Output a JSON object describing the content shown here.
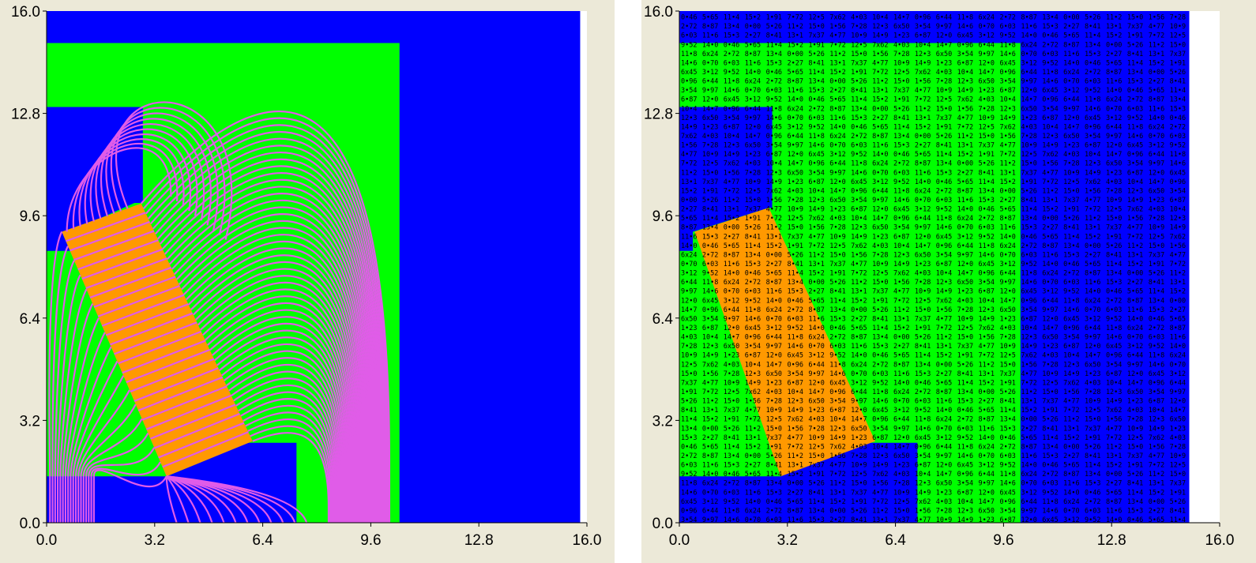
{
  "chart_data": [
    {
      "type": "contour",
      "xlim": [
        0,
        16
      ],
      "ylim": [
        0,
        16
      ],
      "x_ticks": [
        "0.0",
        "3.2",
        "6.4",
        "9.6",
        "12.8",
        "16.0"
      ],
      "y_ticks": [
        "0.0",
        "3.2",
        "6.4",
        "9.6",
        "12.8",
        "16.0"
      ],
      "grid": false,
      "regions": {
        "iron_outer": {
          "color": "#0000ff",
          "polygon": [
            [
              0,
              0
            ],
            [
              15.8,
              0
            ],
            [
              15.8,
              16
            ],
            [
              0,
              16
            ]
          ]
        },
        "air": {
          "color": "#00ff00",
          "polygon": [
            [
              0,
              0
            ],
            [
              10.45,
              0
            ],
            [
              10.45,
              15
            ],
            [
              0,
              15
            ]
          ]
        },
        "iron_pole": {
          "color": "#0000ff",
          "polygon": [
            [
              0,
              8.5
            ],
            [
              2.9,
              8.5
            ],
            [
              2.9,
              13
            ]
          ],
          "note_omitted": true
        },
        "iron_lower": {
          "color": "#0000ff",
          "polygon": [
            [
              0,
              0
            ],
            [
              7.4,
              0
            ],
            [
              7.4,
              2.5
            ],
            [
              5.9,
              2.5
            ],
            [
              3.4,
              1.4
            ],
            [
              0,
              1.4
            ]
          ]
        },
        "magnet": {
          "color": "#ff9900",
          "polygon": [
            [
              0.5,
              9.0
            ],
            [
              2.8,
              9.9
            ],
            [
              6.1,
              2.5
            ],
            [
              3.6,
              1.4
            ]
          ]
        }
      },
      "contour_color": "#e05ce8",
      "contour_count": 48
    },
    {
      "type": "heatmap",
      "xlim": [
        0,
        16
      ],
      "ylim": [
        0,
        16
      ],
      "x_ticks": [
        "0.0",
        "3.2",
        "6.4",
        "9.6",
        "12.8",
        "16.0"
      ],
      "y_ticks": [
        "0.0",
        "3.2",
        "6.4",
        "9.6",
        "12.8",
        "16.0"
      ],
      "grid": false,
      "cell_labels_sample": [
        "0•46",
        "0•70",
        "0•96",
        "1•23",
        "1•56",
        "1•91",
        "2•27",
        "2•72",
        "3•12",
        "3•54",
        "4•03",
        "4•77",
        "5•26",
        "5•65",
        "6•03",
        "6•44",
        "6•87",
        "7•28",
        "7•72",
        "8•41",
        "8•87",
        "9•52",
        "9•97",
        "10•4",
        "10•9",
        "11•2",
        "11•4",
        "11•6",
        "11•8",
        "12•0",
        "12•3",
        "12•5",
        "13•1",
        "13•4",
        "14•0",
        "14•6",
        "14•7",
        "14•9",
        "15•0",
        "15•2",
        "15•3",
        "6x24",
        "6x45",
        "6x50",
        "7x62",
        "7x37",
        "0•00"
      ]
    }
  ]
}
